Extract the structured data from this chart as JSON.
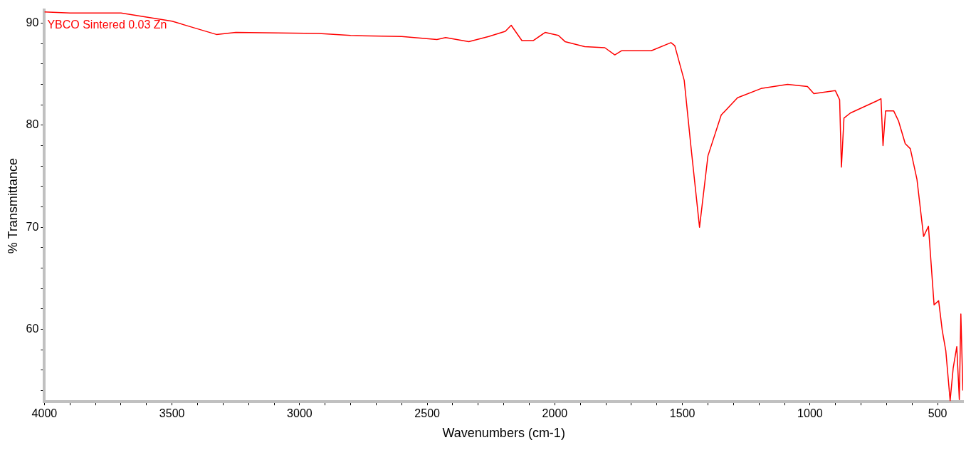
{
  "chart_data": {
    "type": "line",
    "xlabel": "Wavenumbers (cm-1)",
    "ylabel": "% Transmittance",
    "grid": false,
    "xlim": [
      4000,
      400
    ],
    "xticks": [
      4000,
      {
        "value": 3900,
        "label": null
      },
      {
        "value": 3800,
        "label": null
      },
      {
        "value": 3700,
        "label": null
      },
      {
        "value": 3600,
        "label": null
      },
      3500,
      {
        "value": 3400,
        "label": null
      },
      {
        "value": 3300,
        "label": null
      },
      {
        "value": 3200,
        "label": null
      },
      {
        "value": 3100,
        "label": null
      },
      3000,
      {
        "value": 2900,
        "label": null
      },
      {
        "value": 2800,
        "label": null
      },
      {
        "value": 2700,
        "label": null
      },
      {
        "value": 2600,
        "label": null
      },
      2500,
      {
        "value": 2400,
        "label": null
      },
      {
        "value": 2300,
        "label": null
      },
      {
        "value": 2200,
        "label": null
      },
      {
        "value": 2100,
        "label": null
      },
      2000,
      {
        "value": 1900,
        "label": null
      },
      {
        "value": 1800,
        "label": null
      },
      {
        "value": 1700,
        "label": null
      },
      {
        "value": 1600,
        "label": null
      },
      1500,
      {
        "value": 1400,
        "label": null
      },
      {
        "value": 1300,
        "label": null
      },
      {
        "value": 1200,
        "label": null
      },
      {
        "value": 1100,
        "label": null
      },
      1000,
      {
        "value": 900,
        "label": null
      },
      {
        "value": 800,
        "label": null
      },
      {
        "value": 700,
        "label": null
      },
      {
        "value": 600,
        "label": null
      },
      500
    ],
    "ylim": [
      52.9,
      91.3
    ],
    "yticks": [
      {
        "value": 54,
        "label": null
      },
      {
        "value": 56,
        "label": null
      },
      {
        "value": 58,
        "label": null
      },
      60,
      {
        "value": 62,
        "label": null
      },
      {
        "value": 64,
        "label": null
      },
      {
        "value": 66,
        "label": null
      },
      {
        "value": 68,
        "label": null
      },
      70,
      {
        "value": 72,
        "label": null
      },
      {
        "value": 74,
        "label": null
      },
      {
        "value": 76,
        "label": null
      },
      {
        "value": 78,
        "label": null
      },
      80,
      {
        "value": 82,
        "label": null
      },
      {
        "value": 84,
        "label": null
      },
      {
        "value": 86,
        "label": null
      },
      {
        "value": 88,
        "label": null
      },
      90
    ],
    "series": [
      {
        "name": "YBCO Sintered 0.03 Zn",
        "color": "#ff0000",
        "x": [
          4000,
          3900,
          3800,
          3700,
          3600,
          3500,
          3420,
          3326,
          3250,
          2925,
          2800,
          2600,
          2462,
          2428,
          2337,
          2259,
          2194,
          2171,
          2129,
          2084,
          2038,
          1986,
          1960,
          1883,
          1804,
          1765,
          1739,
          1622,
          1545,
          1530,
          1493,
          1467,
          1433,
          1400,
          1348,
          1284,
          1192,
          1088,
          1010,
          985,
          901,
          884,
          877,
          867,
          842,
          737,
          722,
          714,
          704,
          672,
          653,
          627,
          607,
          581,
          555,
          536,
          514,
          496,
          482,
          468,
          451,
          439,
          425,
          415,
          409,
          401
        ],
        "values": [
          91.1,
          91.0,
          91.0,
          91.0,
          90.6,
          90.2,
          89.6,
          88.9,
          89.1,
          89.0,
          88.8,
          88.7,
          88.4,
          88.6,
          88.2,
          88.7,
          89.2,
          89.8,
          88.3,
          88.3,
          89.1,
          88.8,
          88.2,
          87.7,
          87.6,
          86.9,
          87.3,
          87.3,
          88.1,
          87.8,
          84.4,
          78.0,
          70.0,
          77.0,
          81.0,
          82.7,
          83.6,
          84.0,
          83.8,
          83.1,
          83.4,
          82.5,
          75.9,
          80.7,
          81.2,
          82.4,
          82.6,
          78.0,
          81.4,
          81.4,
          80.4,
          78.2,
          77.7,
          74.7,
          69.1,
          70.1,
          62.4,
          62.8,
          59.9,
          57.9,
          53.0,
          56.2,
          58.3,
          53.1,
          61.5,
          54.0
        ]
      }
    ]
  }
}
